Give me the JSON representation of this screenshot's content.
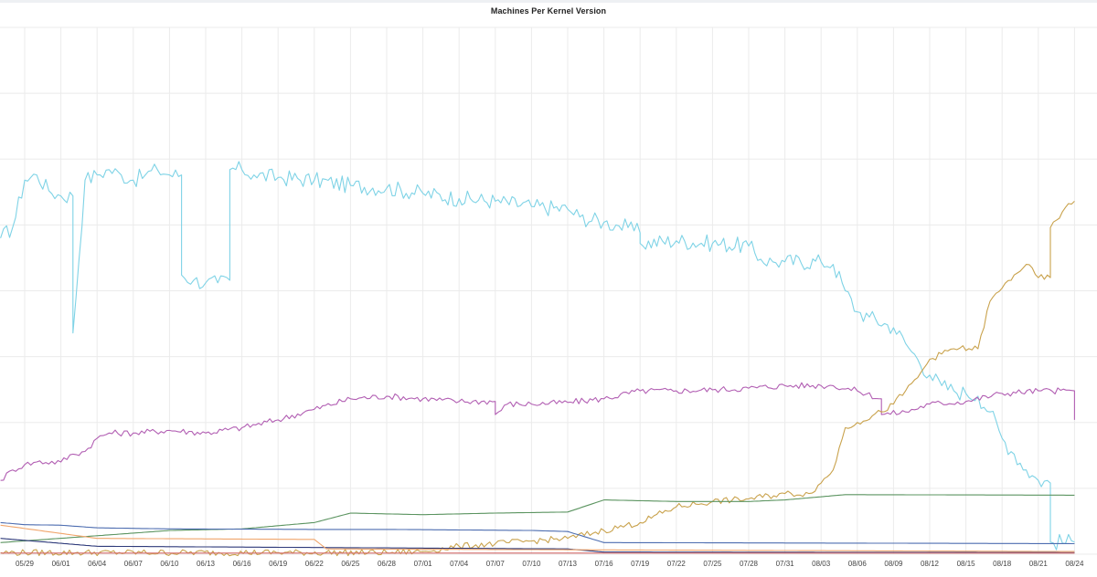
{
  "chart_data": {
    "type": "line",
    "title": "Machines Per Kernel Version",
    "xlabel": "",
    "ylabel": "",
    "x_tick_labels": [
      "05/29",
      "06/01",
      "06/04",
      "06/07",
      "06/10",
      "06/13",
      "06/16",
      "06/19",
      "06/22",
      "06/25",
      "06/28",
      "07/01",
      "07/04",
      "07/07",
      "07/10",
      "07/13",
      "07/16",
      "07/19",
      "07/22",
      "07/25",
      "07/28",
      "07/31",
      "08/03",
      "08/06",
      "08/09",
      "08/12",
      "08/15",
      "08/18",
      "08/21",
      "08/24"
    ],
    "x_range": [
      "05/27",
      "08/24"
    ],
    "y_range": [
      0,
      100
    ],
    "grid": true,
    "legend": "none",
    "series": [
      {
        "color": "#7fd3e6",
        "points": [
          [
            "05/27",
            60
          ],
          [
            "05/28",
            62
          ],
          [
            "05/29",
            71
          ],
          [
            "05/30",
            72
          ],
          [
            "05/31",
            69
          ],
          [
            "06/01",
            68
          ],
          [
            "06/02",
            68
          ],
          [
            "06/02",
            42
          ],
          [
            "06/03",
            71
          ],
          [
            "06/04",
            72
          ],
          [
            "06/05",
            73
          ],
          [
            "06/06",
            72
          ],
          [
            "06/07",
            71
          ],
          [
            "06/08",
            72
          ],
          [
            "06/09",
            73
          ],
          [
            "06/10",
            72
          ],
          [
            "06/11",
            72
          ],
          [
            "06/11",
            53
          ],
          [
            "06/12",
            52
          ],
          [
            "06/13",
            51.5
          ],
          [
            "06/14",
            51.5
          ],
          [
            "06/15",
            52
          ],
          [
            "06/15",
            73
          ],
          [
            "06/16",
            73
          ],
          [
            "06/17",
            72
          ],
          [
            "06/19",
            71.5
          ],
          [
            "06/22",
            71
          ],
          [
            "06/25",
            70
          ],
          [
            "06/28",
            69.5
          ],
          [
            "07/01",
            68.5
          ],
          [
            "07/04",
            67.5
          ],
          [
            "07/07",
            67
          ],
          [
            "07/10",
            66
          ],
          [
            "07/13",
            65.5
          ],
          [
            "07/14",
            64
          ],
          [
            "07/16",
            63
          ],
          [
            "07/17",
            62.5
          ],
          [
            "07/18",
            62
          ],
          [
            "07/19",
            61
          ],
          [
            "07/19",
            59
          ],
          [
            "07/22",
            59.5
          ],
          [
            "07/25",
            59
          ],
          [
            "07/28",
            58.5
          ],
          [
            "07/29",
            56
          ],
          [
            "07/30",
            55.5
          ],
          [
            "07/31",
            55.5
          ],
          [
            "08/03",
            55.5
          ],
          [
            "08/04",
            55
          ],
          [
            "08/05",
            50
          ],
          [
            "08/06",
            46
          ],
          [
            "08/07",
            45
          ],
          [
            "08/09",
            43
          ],
          [
            "08/10",
            40
          ],
          [
            "08/11",
            37
          ],
          [
            "08/12",
            34
          ],
          [
            "08/13",
            32
          ],
          [
            "08/14",
            31
          ],
          [
            "08/15",
            30.5
          ],
          [
            "08/16",
            30
          ],
          [
            "08/17",
            27
          ],
          [
            "08/18",
            22
          ],
          [
            "08/19",
            19
          ],
          [
            "08/20",
            16
          ],
          [
            "08/21",
            14
          ],
          [
            "08/22",
            13.5
          ],
          [
            "08/22",
            2.3
          ],
          [
            "08/24",
            2.3
          ]
        ]
      },
      {
        "color": "#b25fb3",
        "points": [
          [
            "05/27",
            14
          ],
          [
            "05/28",
            16
          ],
          [
            "05/29",
            17
          ],
          [
            "05/30",
            17.5
          ],
          [
            "06/01",
            17.5
          ],
          [
            "06/02",
            19
          ],
          [
            "06/03",
            19.5
          ],
          [
            "06/04",
            22
          ],
          [
            "06/05",
            23
          ],
          [
            "06/07",
            23
          ],
          [
            "06/10",
            23.5
          ],
          [
            "06/13",
            23
          ],
          [
            "06/16",
            24
          ],
          [
            "06/19",
            25.5
          ],
          [
            "06/22",
            27.5
          ],
          [
            "06/25",
            29.5
          ],
          [
            "06/28",
            30
          ],
          [
            "07/01",
            29.5
          ],
          [
            "07/04",
            29
          ],
          [
            "07/07",
            29
          ],
          [
            "07/07",
            26.5
          ],
          [
            "07/08",
            28.5
          ],
          [
            "07/10",
            28.5
          ],
          [
            "07/13",
            28.8
          ],
          [
            "07/16",
            29.5
          ],
          [
            "07/19",
            31
          ],
          [
            "07/22",
            31
          ],
          [
            "07/25",
            31.2
          ],
          [
            "07/28",
            31.5
          ],
          [
            "07/31",
            32
          ],
          [
            "08/03",
            32
          ],
          [
            "08/04",
            32
          ],
          [
            "08/06",
            31
          ],
          [
            "08/08",
            29.5
          ],
          [
            "08/08",
            26.5
          ],
          [
            "08/10",
            27
          ],
          [
            "08/12",
            28.5
          ],
          [
            "08/15",
            29
          ],
          [
            "08/18",
            30.5
          ],
          [
            "08/21",
            31
          ],
          [
            "08/24",
            31
          ],
          [
            "08/24",
            25.5
          ]
        ]
      },
      {
        "color": "#c9a24c",
        "points": [
          [
            "05/27",
            0.3
          ],
          [
            "06/28",
            0.3
          ],
          [
            "07/01",
            0.5
          ],
          [
            "07/04",
            1.5
          ],
          [
            "07/07",
            2.0
          ],
          [
            "07/10",
            2.5
          ],
          [
            "07/13",
            3.0
          ],
          [
            "07/16",
            4.5
          ],
          [
            "07/19",
            6.0
          ],
          [
            "07/22",
            9.0
          ],
          [
            "07/25",
            10.0
          ],
          [
            "07/28",
            10.5
          ],
          [
            "07/31",
            11.5
          ],
          [
            "08/02",
            11.5
          ],
          [
            "08/03",
            13.5
          ],
          [
            "08/04",
            16.0
          ],
          [
            "08/05",
            24.0
          ],
          [
            "08/06",
            25.0
          ],
          [
            "08/08",
            27.0
          ],
          [
            "08/09",
            28.5
          ],
          [
            "08/10",
            31.0
          ],
          [
            "08/11",
            33.5
          ],
          [
            "08/12",
            37.0
          ],
          [
            "08/13",
            38.0
          ],
          [
            "08/14",
            39.0
          ],
          [
            "08/16",
            39.0
          ],
          [
            "08/17",
            48.0
          ],
          [
            "08/18",
            50.5
          ],
          [
            "08/19",
            53.0
          ],
          [
            "08/20",
            55.0
          ],
          [
            "08/21",
            52.5
          ],
          [
            "08/22",
            52.5
          ],
          [
            "08/22",
            62.0
          ],
          [
            "08/23",
            65.0
          ],
          [
            "08/24",
            67.0
          ]
        ]
      },
      {
        "color": "#5b9460",
        "points": [
          [
            "05/27",
            2.2
          ],
          [
            "06/04",
            3.5
          ],
          [
            "06/10",
            4.5
          ],
          [
            "06/16",
            4.8
          ],
          [
            "06/22",
            6.0
          ],
          [
            "06/25",
            7.8
          ],
          [
            "07/01",
            7.5
          ],
          [
            "07/07",
            7.8
          ],
          [
            "07/13",
            8.0
          ],
          [
            "07/16",
            10.3
          ],
          [
            "07/22",
            10.0
          ],
          [
            "07/28",
            10.0
          ],
          [
            "07/31",
            10.3
          ],
          [
            "08/05",
            11.3
          ],
          [
            "08/24",
            11.2
          ]
        ]
      },
      {
        "color": "#4d6db0",
        "points": [
          [
            "05/27",
            6.0
          ],
          [
            "05/29",
            5.6
          ],
          [
            "06/01",
            5.5
          ],
          [
            "06/04",
            5.0
          ],
          [
            "06/10",
            4.8
          ],
          [
            "06/22",
            4.7
          ],
          [
            "06/28",
            4.7
          ],
          [
            "07/04",
            4.6
          ],
          [
            "07/10",
            4.5
          ],
          [
            "07/13",
            4.3
          ],
          [
            "07/16",
            2.2
          ],
          [
            "08/24",
            2.0
          ]
        ]
      },
      {
        "color": "#2e3a7a",
        "points": [
          [
            "05/27",
            3.0
          ],
          [
            "06/04",
            1.5
          ],
          [
            "07/13",
            1.0
          ],
          [
            "07/16",
            0.4
          ],
          [
            "08/24",
            0.3
          ]
        ]
      },
      {
        "color": "#f0a56b",
        "points": [
          [
            "05/27",
            5.5
          ],
          [
            "06/04",
            3.0
          ],
          [
            "06/22",
            2.8
          ],
          [
            "06/23",
            1.0
          ],
          [
            "08/24",
            0.5
          ]
        ]
      },
      {
        "color": "#d46a6a",
        "points": [
          [
            "05/27",
            0.2
          ],
          [
            "08/24",
            0.2
          ]
        ]
      }
    ]
  }
}
